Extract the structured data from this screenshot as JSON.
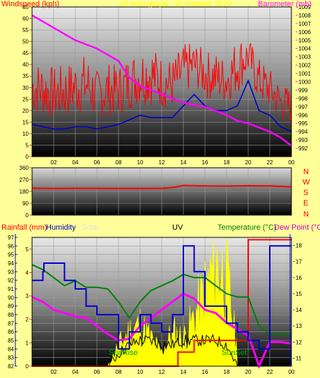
{
  "colors": {
    "page_bg": "#ffff99",
    "wind": "#ff0000",
    "wind_avg": "#0000cc",
    "barometer": "#ff00ff",
    "direction": "#ff0000",
    "rainfall": "#ff0000",
    "humidity": "#0000cc",
    "solar": "#ffff00",
    "uv": "#000000",
    "temperature": "#008000",
    "dewpoint": "#ff00ff",
    "title": "#ffff00",
    "sunrise_sunset": "#00a000"
  },
  "top_header": {
    "left_label": "Windspeed (kph)",
    "center_label": "24 hour graph - 30 October 2010",
    "right_label": "Barometer (mb)"
  },
  "middle_header": {
    "compass": [
      "N",
      "W",
      "S",
      "E",
      "N"
    ]
  },
  "bottom_header": {
    "rainfall_label": "Rainfall (mm)",
    "humidity_label": "Humidity",
    "solar_label": "Solar",
    "uv_label": "UV",
    "temperature_label": "Temperature (°C)",
    "dewpoint_label": "Dew Point (°C)"
  },
  "annotations": {
    "sunrise": "SunRise",
    "sunset": "SunSet"
  },
  "chart_data": [
    {
      "type": "line",
      "x_ticks": [
        "02",
        "04",
        "06",
        "08",
        "10",
        "12",
        "14",
        "16",
        "18",
        "20",
        "22",
        "00"
      ],
      "y_left": {
        "label": "Windspeed (kph)",
        "min": 0,
        "max": 65,
        "ticks": [
          0,
          5,
          10,
          15,
          20,
          25,
          30,
          35,
          40,
          45,
          50,
          55,
          60,
          65
        ]
      },
      "y_right": {
        "label": "Barometer (mb)",
        "min": 991,
        "max": 1009,
        "ticks": [
          992,
          993,
          994,
          995,
          996,
          997,
          998,
          999,
          1000,
          1001,
          1002,
          1003,
          1004,
          1005,
          1006,
          1007,
          1008,
          1009
        ]
      },
      "series": [
        {
          "name": "Windspeed (kph)",
          "axis": "left",
          "x": [
            0,
            1,
            2,
            3,
            4,
            5,
            6,
            7,
            8,
            9,
            10,
            11,
            12,
            13,
            14,
            15,
            16,
            17,
            18,
            19,
            20,
            21,
            22,
            23,
            24
          ],
          "values": [
            28,
            27,
            25,
            26,
            28,
            30,
            24,
            27,
            26,
            30,
            33,
            34,
            30,
            29,
            35,
            37,
            33,
            32,
            30,
            38,
            40,
            30,
            26,
            20,
            18
          ]
        },
        {
          "name": "Windspeed (kph) average",
          "axis": "left",
          "x": [
            0,
            1,
            2,
            3,
            4,
            5,
            6,
            7,
            8,
            9,
            10,
            11,
            12,
            13,
            14,
            15,
            16,
            17,
            18,
            19,
            20,
            21,
            22,
            23,
            24
          ],
          "values": [
            14,
            13,
            12,
            12,
            13,
            13,
            12,
            13,
            14,
            16,
            18,
            17,
            17,
            17,
            22,
            27,
            22,
            20,
            20,
            22,
            33,
            20,
            18,
            13,
            11
          ]
        },
        {
          "name": "Barometer (mb)",
          "axis": "right",
          "x": [
            0,
            2,
            4,
            6,
            8,
            9,
            10,
            11,
            12,
            13,
            14,
            15,
            16,
            17,
            18,
            19,
            20,
            21,
            22,
            23,
            24
          ],
          "values": [
            1008,
            1006.5,
            1005,
            1004,
            1002.5,
            1000.5,
            999.5,
            999,
            998.5,
            998,
            997.5,
            997.2,
            997,
            996.5,
            996,
            995.3,
            995,
            994.5,
            994,
            993.3,
            992.3
          ]
        }
      ]
    },
    {
      "type": "line",
      "x_ticks": [
        "02",
        "04",
        "06",
        "08",
        "10",
        "12",
        "14",
        "16",
        "18",
        "20",
        "22",
        "00"
      ],
      "y_left": {
        "label": "",
        "min": 0,
        "max": 360,
        "ticks": [
          0,
          90,
          180,
          270,
          360
        ]
      },
      "series": [
        {
          "name": "Wind direction",
          "x": [
            0,
            2,
            4,
            6,
            8,
            10,
            12,
            13,
            14,
            16,
            18,
            20,
            22,
            24
          ],
          "values": [
            205,
            203,
            204,
            204,
            203,
            203,
            204,
            210,
            225,
            222,
            220,
            223,
            222,
            215
          ]
        }
      ]
    },
    {
      "type": "line",
      "x_ticks": [
        "02",
        "04",
        "06",
        "08",
        "10",
        "12",
        "14",
        "16",
        "18",
        "20",
        "22",
        "00"
      ],
      "y_left": {
        "label": "Humidity",
        "min": 82,
        "max": 97,
        "ticks": [
          82,
          83,
          84,
          85,
          86,
          87,
          88,
          89,
          90,
          91,
          92,
          93,
          94,
          95,
          96,
          97
        ]
      },
      "y_rain": {
        "label": "Rainfall (mm)",
        "min": 0,
        "max": 5.5,
        "ticks": [
          0,
          1,
          2,
          3,
          4,
          5
        ]
      },
      "y_right": {
        "label": "Temperature (°C)",
        "min": 10.5,
        "max": 18.5,
        "ticks": [
          11,
          12,
          13,
          14,
          15,
          16,
          17,
          18
        ]
      },
      "series": [
        {
          "name": "Rainfall (mm)",
          "axis": "rain",
          "x": [
            0,
            12.5,
            13.5,
            15,
            19.8,
            20,
            24
          ],
          "values": [
            0,
            0,
            0.6,
            1.1,
            1.1,
            5.4,
            5.4
          ]
        },
        {
          "name": "Humidity",
          "axis": "left",
          "x": [
            0,
            0.5,
            1,
            1.1,
            2,
            3,
            4,
            5,
            6,
            7,
            8,
            9,
            10,
            11,
            12,
            13,
            14,
            15,
            16,
            17,
            18,
            19,
            20,
            21,
            22,
            23,
            24
          ],
          "values": [
            92,
            92,
            93,
            94,
            94,
            92,
            91,
            89,
            88,
            88,
            84,
            86,
            88,
            87,
            86,
            88,
            96,
            93,
            89,
            89,
            87,
            86,
            85,
            84,
            96,
            96,
            96
          ]
        },
        {
          "name": "Solar",
          "axis": "left",
          "x": [
            7,
            8,
            9,
            10,
            11,
            12,
            13,
            14,
            15,
            16,
            17,
            18,
            19
          ],
          "values": [
            82,
            85,
            87,
            88,
            86,
            84,
            87,
            86,
            89,
            93,
            97,
            95,
            84
          ]
        },
        {
          "name": "UV",
          "axis": "left",
          "x": [
            7,
            8,
            9,
            10,
            11,
            12,
            13,
            14,
            15,
            16,
            17,
            18,
            19
          ],
          "values": [
            82,
            83.5,
            84.5,
            85,
            85,
            84.5,
            84.5,
            85,
            85,
            85,
            85,
            84.5,
            82
          ]
        },
        {
          "name": "Temperature (°C)",
          "axis": "right",
          "x": [
            0,
            1,
            2,
            3,
            4,
            5,
            6,
            7,
            8,
            9,
            10,
            11,
            12,
            13,
            14,
            15,
            16,
            17,
            18,
            19,
            20,
            21,
            22,
            23,
            24
          ],
          "values": [
            16.8,
            16.5,
            16,
            15.5,
            15.8,
            15.4,
            15.4,
            15.3,
            14.5,
            13.5,
            14.5,
            15.2,
            15.5,
            15.8,
            16.2,
            16,
            16,
            15.5,
            15,
            14.8,
            14.8,
            13,
            12.5,
            12.5,
            12.5
          ]
        },
        {
          "name": "Dew Point (°C)",
          "axis": "right",
          "x": [
            0,
            1,
            2,
            3,
            4,
            5,
            6,
            7,
            8,
            9,
            10,
            11,
            12,
            13,
            14,
            15,
            16,
            17,
            18,
            19,
            20,
            20.5,
            21,
            22,
            23,
            24
          ],
          "values": [
            14.8,
            14.5,
            14,
            13.8,
            13.6,
            13.5,
            13,
            12.5,
            12.1,
            12.2,
            13,
            13.5,
            14,
            14.5,
            15,
            14.7,
            14,
            13.8,
            13.2,
            12.8,
            12.4,
            11.5,
            10.5,
            12,
            12,
            11.9
          ]
        }
      ]
    }
  ]
}
